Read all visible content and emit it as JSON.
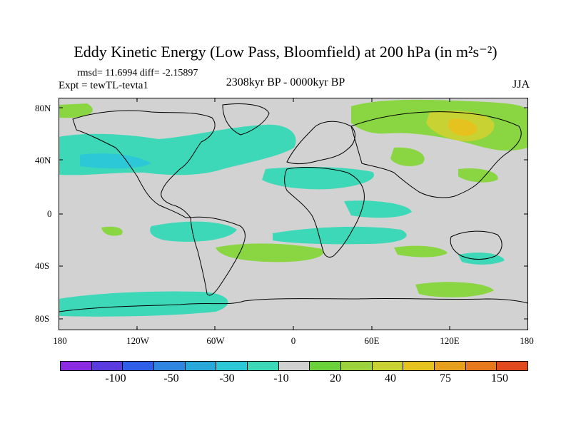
{
  "title": "Eddy Kinetic Energy (Low Pass, Bloomfield) at 200 hPa (in m²s⁻²)",
  "stats": "rmsd= 11.6994 diff= -2.15897",
  "experiment": "Expt = tewTL-tevta1",
  "period": "2308kyr BP - 0000kyr BP",
  "season": "JJA",
  "map": {
    "projection": "cylindrical-equidistant",
    "lon_range": [
      -180,
      180
    ],
    "lat_range": [
      -90,
      90
    ],
    "background_color": "#d2d2d2",
    "y_ticks": [
      "80N",
      "40N",
      "0",
      "40S",
      "80S"
    ],
    "x_ticks": [
      "180",
      "120W",
      "60W",
      "0",
      "60E",
      "120E",
      "180"
    ]
  },
  "colorbar": {
    "colors": [
      "#8a2be2",
      "#5a3be0",
      "#2f5ee8",
      "#2f86e0",
      "#28a8d8",
      "#2cc8d8",
      "#3cd8b8",
      "#d0d0d0",
      "#6cd23c",
      "#9cd23c",
      "#c8d232",
      "#e6c21e",
      "#e6a01e",
      "#e6781e",
      "#e04a1e"
    ],
    "labels": [
      "-100",
      "-50",
      "-30",
      "-10",
      "20",
      "40",
      "75",
      "150"
    ]
  }
}
